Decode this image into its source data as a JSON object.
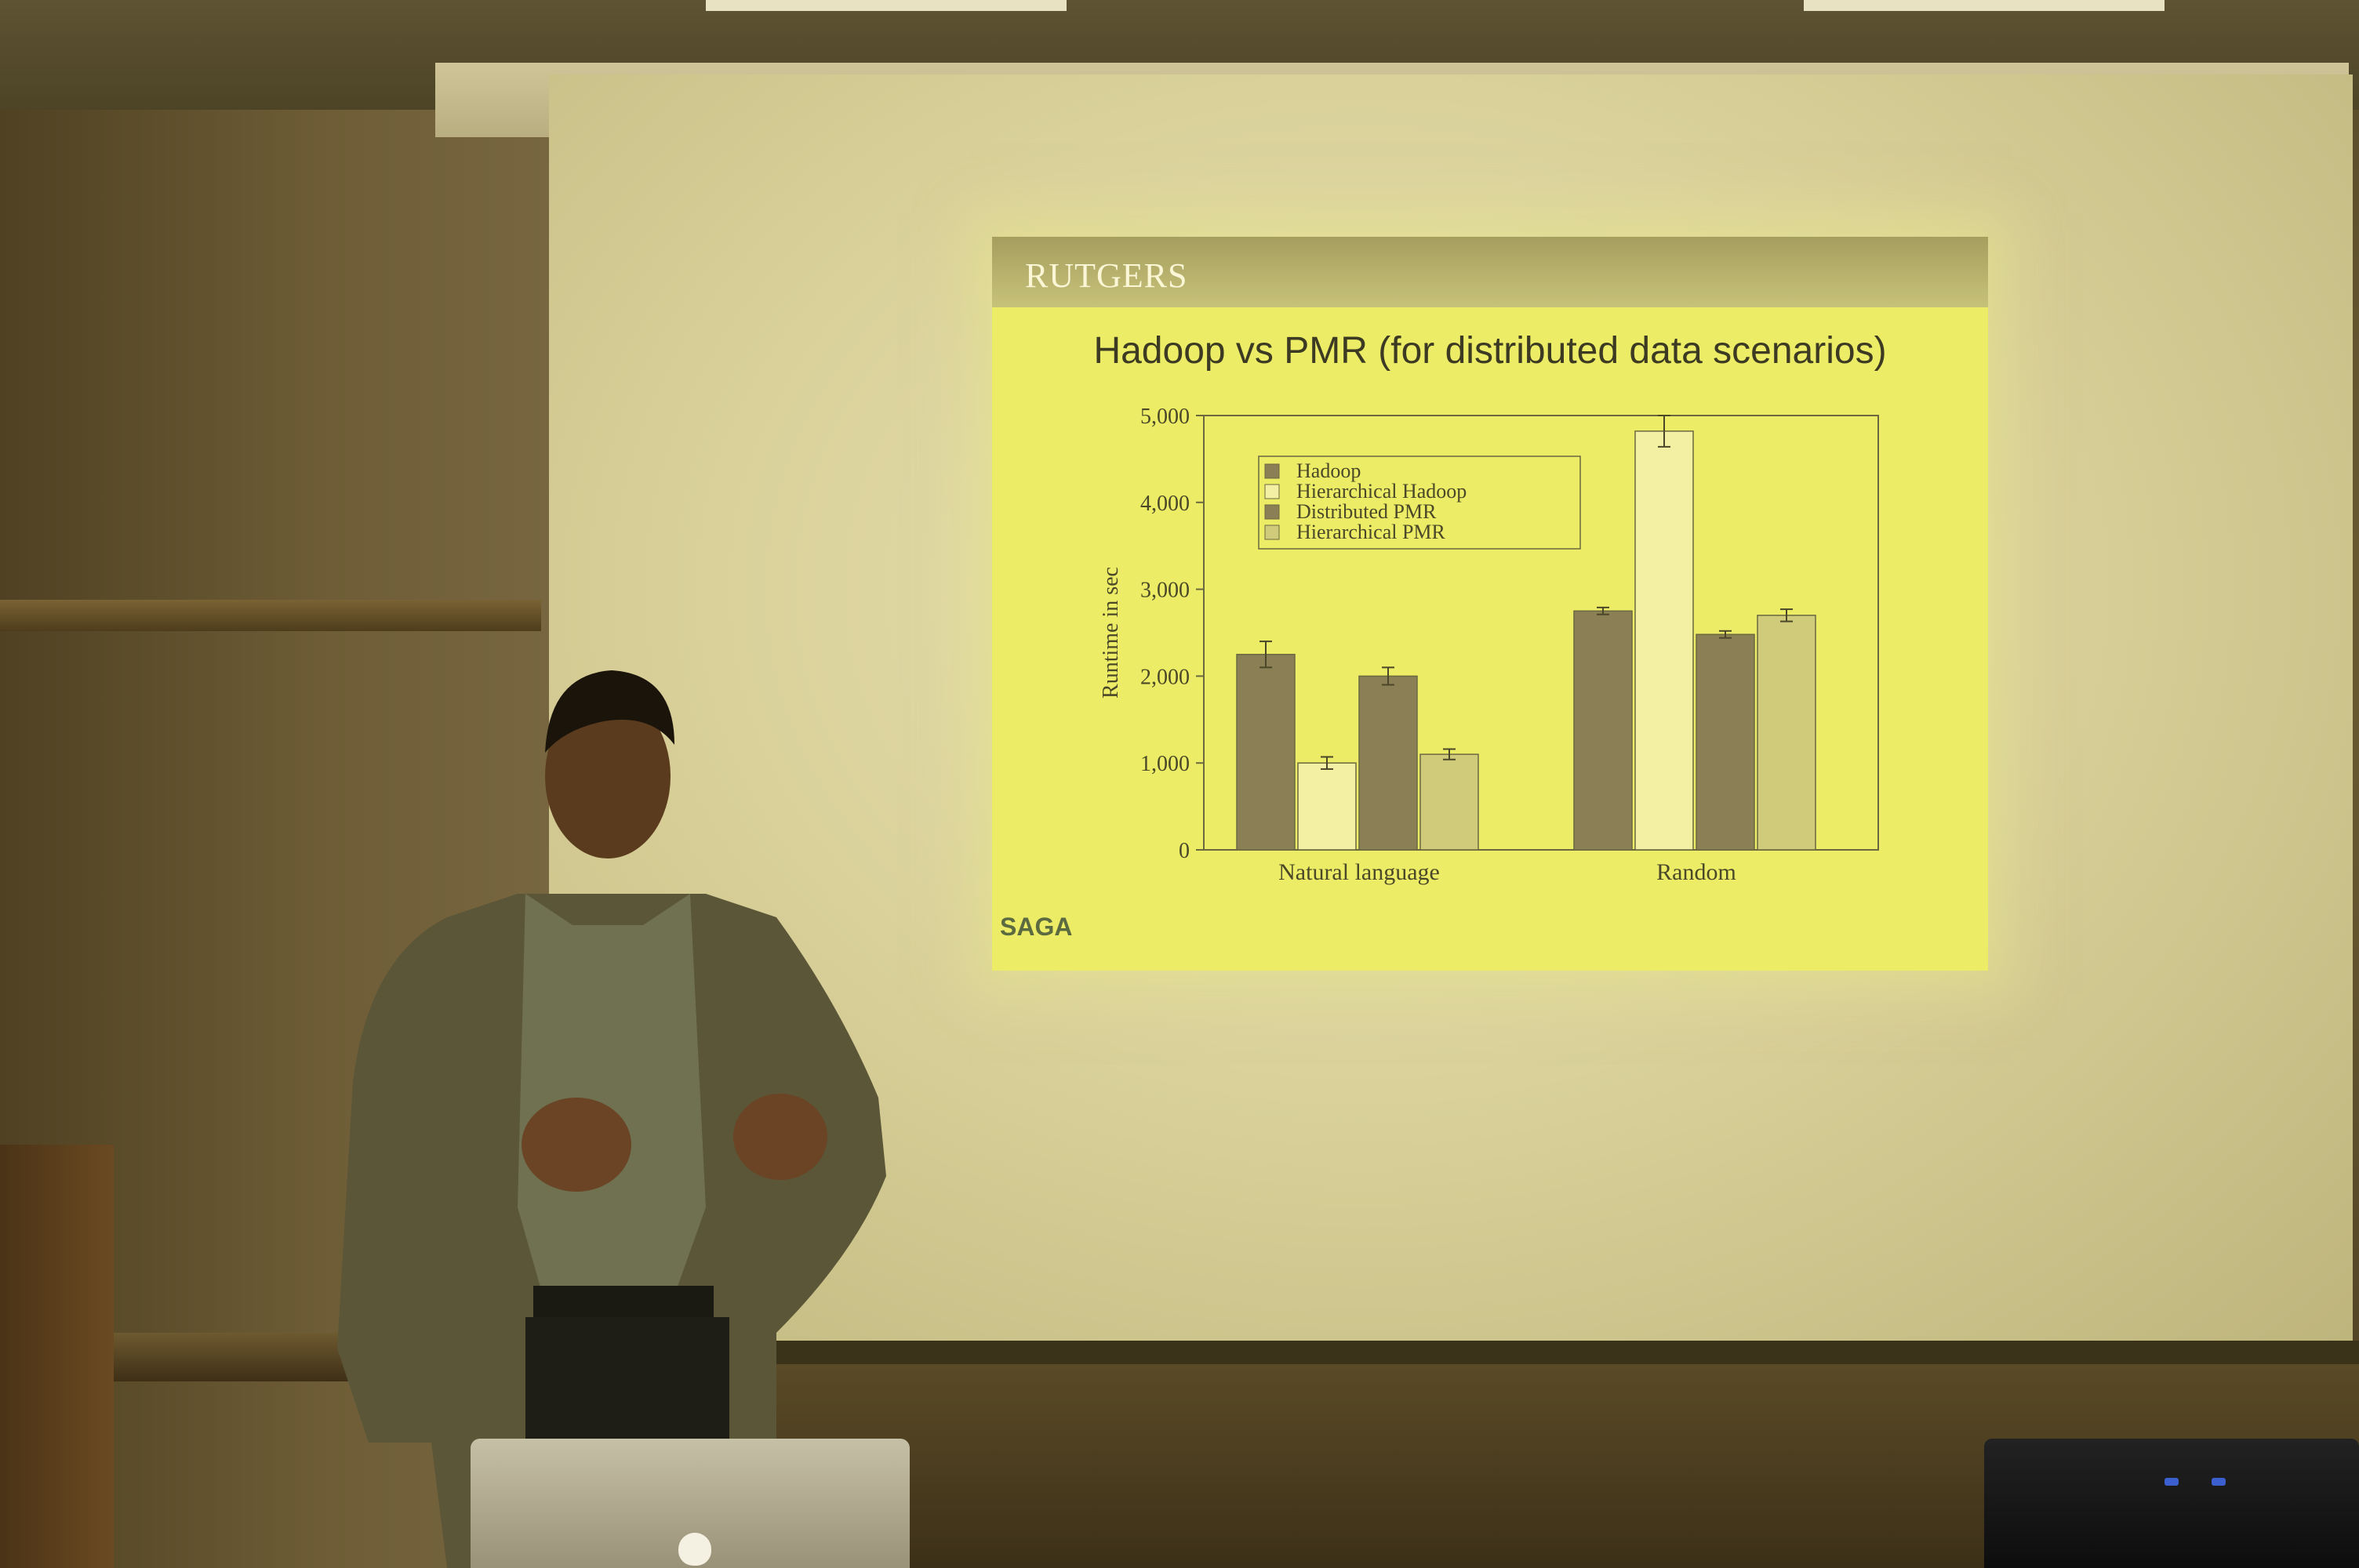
{
  "scene": "presenter in front of projection screen",
  "slide": {
    "logo": "RUTGERS",
    "title": "Hadoop vs PMR (for distributed data scenarios)",
    "footer": "SAGA"
  },
  "chart_data": {
    "type": "bar",
    "title": "",
    "xlabel": "",
    "ylabel": "Runtime in sec",
    "ylim": [
      0,
      5000
    ],
    "yticks": [
      "0",
      "1,000",
      "2,000",
      "3,000",
      "4,000",
      "5,000"
    ],
    "categories": [
      "Natural language",
      "Random"
    ],
    "legend_position": "top-left",
    "series": [
      {
        "name": "Hadoop",
        "values": [
          2250,
          2750
        ],
        "errors": [
          150,
          40
        ],
        "color": "#8b7f55"
      },
      {
        "name": "Hierarchical Hadoop",
        "values": [
          1000,
          4820
        ],
        "errors": [
          70,
          180
        ],
        "color": "#f3f0a4"
      },
      {
        "name": "Distributed PMR",
        "values": [
          2000,
          2480
        ],
        "errors": [
          100,
          40
        ],
        "color": "#8b7f55"
      },
      {
        "name": "Hierarchical PMR",
        "values": [
          1100,
          2700
        ],
        "errors": [
          60,
          70
        ],
        "color": "#cfcb7a"
      }
    ]
  }
}
